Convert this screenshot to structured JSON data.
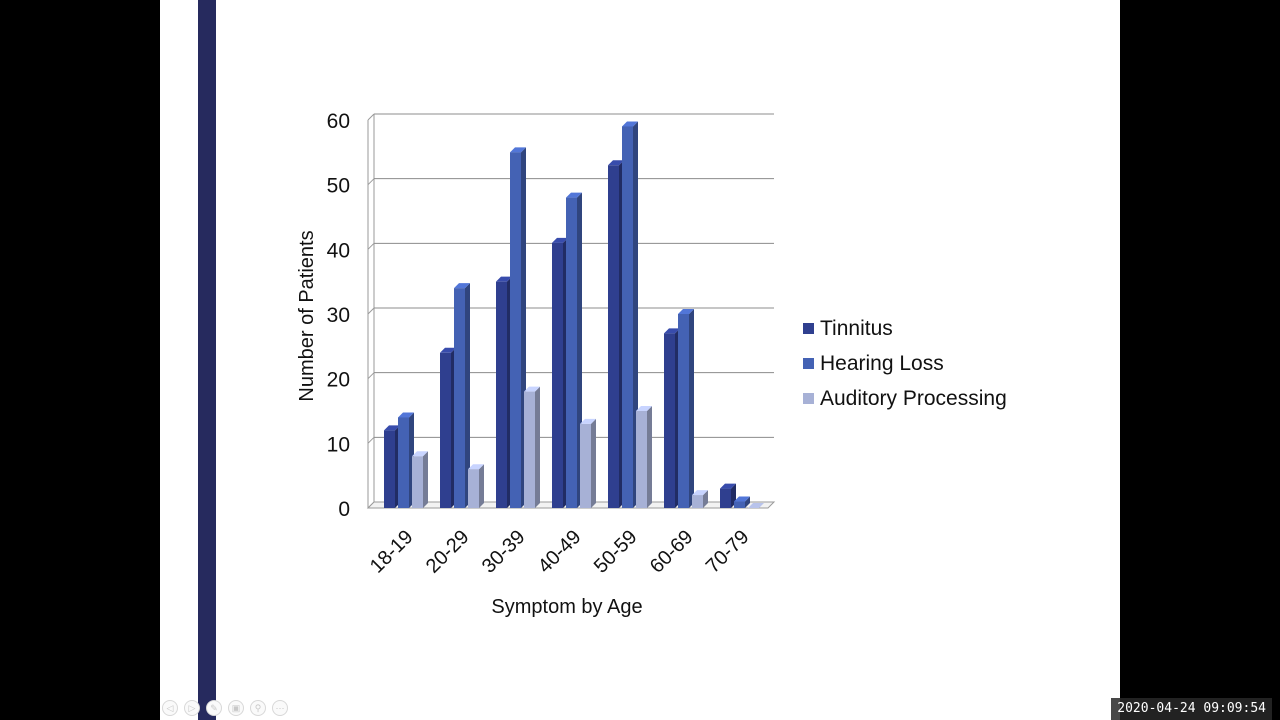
{
  "chart_data": {
    "type": "bar",
    "xlabel": "Symptom by Age",
    "ylabel": "Number of Patients",
    "ylim": [
      0,
      60
    ],
    "yticks": [
      0,
      10,
      20,
      30,
      40,
      50,
      60
    ],
    "categories": [
      "18-19",
      "20-29",
      "30-39",
      "40-49",
      "50-59",
      "60-69",
      "70-79"
    ],
    "series": [
      {
        "name": "Tinnitus",
        "values": [
          12,
          24,
          35,
          41,
          53,
          27,
          3
        ]
      },
      {
        "name": "Hearing Loss",
        "values": [
          14,
          34,
          55,
          48,
          59,
          30,
          1
        ]
      },
      {
        "name": "Auditory Processing",
        "values": [
          8,
          6,
          18,
          13,
          15,
          2,
          0
        ]
      }
    ],
    "grid": true,
    "legend_position": "right",
    "colors": {
      "Tinnitus": "#2f3f8f",
      "Hearing Loss": "#4462b4",
      "Auditory Processing": "#a7b1d6"
    },
    "style": "3d-clustered"
  },
  "timestamp": "2020-04-24  09:09:54",
  "slide_controls": [
    {
      "icon": "previous-icon",
      "glyph": "◁"
    },
    {
      "icon": "next-icon",
      "glyph": "▷"
    },
    {
      "icon": "pen-icon",
      "glyph": "✎"
    },
    {
      "icon": "slides-icon",
      "glyph": "▣"
    },
    {
      "icon": "zoom-icon",
      "glyph": "⚲"
    },
    {
      "icon": "more-icon",
      "glyph": "⋯"
    }
  ]
}
